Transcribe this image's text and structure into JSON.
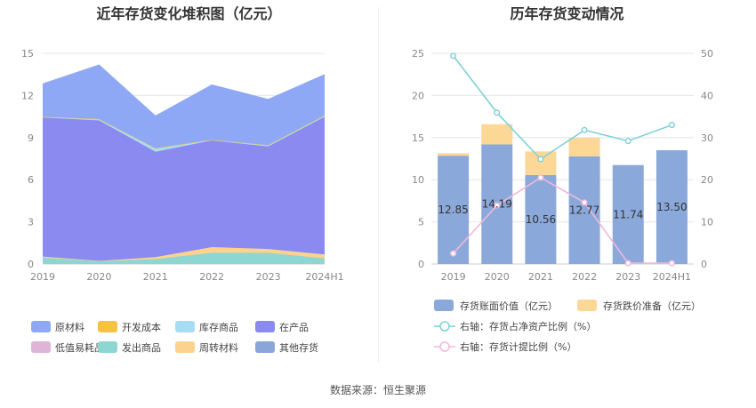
{
  "source": "数据来源：恒生聚源",
  "chart_data": [
    {
      "type": "area",
      "stacked": true,
      "title": "近年存货变化堆积图（亿元）",
      "categories": [
        "2019",
        "2020",
        "2021",
        "2022",
        "2023",
        "2024H1"
      ],
      "ylim": [
        0,
        15
      ],
      "yticks": [
        "0",
        "3",
        "6",
        "9",
        "12",
        "15"
      ],
      "series": [
        {
          "name": "原材料",
          "color": "#8ea8f5",
          "values": [
            2.35,
            3.85,
            2.3,
            3.9,
            3.25,
            2.9
          ]
        },
        {
          "name": "开发成本",
          "color": "#f5c242",
          "values": [
            0,
            0,
            0,
            0,
            0,
            0
          ]
        },
        {
          "name": "库存商品",
          "color": "#a8dcf5",
          "values": [
            0.05,
            0.1,
            0.25,
            0.05,
            0.1,
            0.1
          ]
        },
        {
          "name": "在产品",
          "color": "#8a8af0",
          "values": [
            9.9,
            10.0,
            7.5,
            7.6,
            7.3,
            9.8
          ]
        },
        {
          "name": "低值易耗品",
          "color": "#e0b3d9",
          "values": [
            0.02,
            0.02,
            0.02,
            0.02,
            0.02,
            0.02
          ]
        },
        {
          "name": "发出商品",
          "color": "#8ed6d2",
          "values": [
            0.45,
            0.2,
            0.35,
            0.8,
            0.8,
            0.4
          ]
        },
        {
          "name": "周转材料",
          "color": "#fbd38e",
          "values": [
            0.08,
            0.02,
            0.14,
            0.4,
            0.27,
            0.28
          ]
        },
        {
          "name": "其他存货",
          "color": "#8aa5d9",
          "values": [
            0,
            0,
            0,
            0,
            0,
            0
          ]
        }
      ],
      "draw_order": [
        5,
        6,
        3,
        2,
        1,
        0
      ],
      "legend": [
        "原材料",
        "开发成本",
        "库存商品",
        "在产品",
        "低值易耗品",
        "发出商品",
        "周转材料",
        "其他存货"
      ]
    },
    {
      "type": "bar",
      "stacked": true,
      "title": "历年存货变动情况",
      "categories": [
        "2019",
        "2020",
        "2021",
        "2022",
        "2023",
        "2024H1"
      ],
      "ylim": [
        0,
        25
      ],
      "yticks": [
        "0",
        "5",
        "10",
        "15",
        "20",
        "25"
      ],
      "y2lim": [
        0,
        50
      ],
      "y2ticks": [
        "0",
        "10",
        "20",
        "30",
        "40",
        "50"
      ],
      "series": [
        {
          "name": "存货账面价值（亿元）",
          "color": "#8aa8d9",
          "values": [
            12.85,
            14.19,
            10.56,
            12.77,
            11.74,
            13.5
          ],
          "labels": [
            "12.85",
            "14.19",
            "10.56",
            "12.77",
            "11.74",
            "13.50"
          ]
        },
        {
          "name": "存货跌价准备（亿元）",
          "color": "#fcd796",
          "values": [
            0.3,
            2.4,
            2.8,
            2.2,
            0,
            0
          ]
        }
      ],
      "lines": [
        {
          "name": "右轴：存货占净资产比例（%）",
          "color": "#7fd1d9",
          "values": [
            49.4,
            35.9,
            24.9,
            31.8,
            29.2,
            33.0
          ]
        },
        {
          "name": "右轴：存货计提比例（%）",
          "color": "#f0b8dc",
          "values": [
            2.5,
            13.9,
            20.5,
            14.6,
            0.2,
            0.2
          ]
        }
      ]
    }
  ]
}
